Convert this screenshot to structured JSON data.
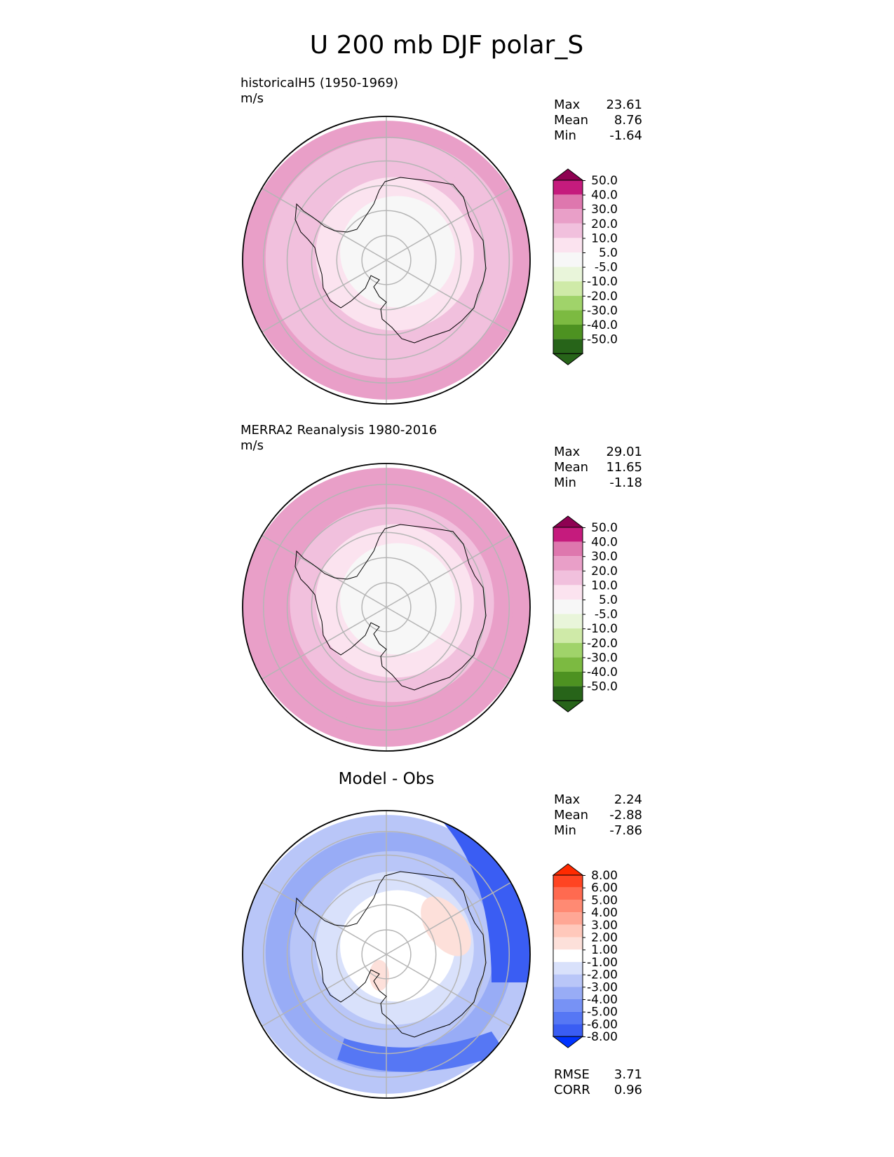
{
  "figure": {
    "title": "U 200 mb DJF polar_S"
  },
  "panels": [
    {
      "id": "model",
      "title_left": "historicalH5 (1950-1969)",
      "units": "m/s",
      "title_center": "",
      "stats": [
        {
          "label": "Max",
          "value": "23.61"
        },
        {
          "label": "Mean",
          "value": "8.76"
        },
        {
          "label": "Min",
          "value": "-1.64"
        }
      ],
      "colorbar": {
        "top_arrow_color": "#8e0152",
        "bottom_arrow_color": "#276419",
        "colors": [
          "#c51b7d",
          "#de77ae",
          "#e99fc8",
          "#f1c0dd",
          "#fbe3ef",
          "#f7f7f7",
          "#e9f5da",
          "#cfeaa8",
          "#a0d36a",
          "#7cba41",
          "#4d9221",
          "#276419"
        ],
        "labels": [
          "50.0",
          "40.0",
          "30.0",
          "20.0",
          "10.0",
          "5.0",
          "-5.0",
          "-10.0",
          "-20.0",
          "-30.0",
          "-40.0",
          "-50.0"
        ]
      },
      "footer_stats": [],
      "rings": [
        {
          "value": 23,
          "color": "#e99fc8"
        },
        {
          "value": 15,
          "color": "#f1c0dd"
        },
        {
          "value": 12,
          "color": "#f1c0dd"
        },
        {
          "value": 8,
          "color": "#fbe3ef"
        },
        {
          "value": 4,
          "color": "#f7f7f7"
        }
      ],
      "patches": []
    },
    {
      "id": "obs",
      "title_left": "MERRA2 Reanalysis 1980-2016",
      "units": "m/s",
      "title_center": "",
      "stats": [
        {
          "label": "Max",
          "value": "29.01"
        },
        {
          "label": "Mean",
          "value": "11.65"
        },
        {
          "label": "Min",
          "value": "-1.18"
        }
      ],
      "colorbar": {
        "top_arrow_color": "#8e0152",
        "bottom_arrow_color": "#276419",
        "colors": [
          "#c51b7d",
          "#de77ae",
          "#e99fc8",
          "#f1c0dd",
          "#fbe3ef",
          "#f7f7f7",
          "#e9f5da",
          "#cfeaa8",
          "#a0d36a",
          "#7cba41",
          "#4d9221",
          "#276419"
        ],
        "labels": [
          "50.0",
          "40.0",
          "30.0",
          "20.0",
          "10.0",
          "5.0",
          "-5.0",
          "-10.0",
          "-20.0",
          "-30.0",
          "-40.0",
          "-50.0"
        ]
      },
      "footer_stats": [],
      "rings": [
        {
          "value": 29,
          "color": "#e99fc8"
        },
        {
          "value": 22,
          "color": "#e99fc8"
        },
        {
          "value": 16,
          "color": "#f1c0dd"
        },
        {
          "value": 9,
          "color": "#fbe3ef"
        },
        {
          "value": 4,
          "color": "#f7f7f7"
        }
      ],
      "patches": []
    },
    {
      "id": "diff",
      "title_left": "",
      "units": "",
      "title_center": "Model - Obs",
      "stats": [
        {
          "label": "Max",
          "value": "2.24"
        },
        {
          "label": "Mean",
          "value": "-2.88"
        },
        {
          "label": "Min",
          "value": "-7.86"
        }
      ],
      "colorbar": {
        "top_arrow_color": "#ff2a00",
        "bottom_arrow_color": "#0033ff",
        "colors": [
          "#ff4422",
          "#ff6a50",
          "#ff8a73",
          "#ffa795",
          "#ffc8bb",
          "#fde0da",
          "#ffffff",
          "#d9e1fb",
          "#b9c6f8",
          "#98acf6",
          "#7792f5",
          "#5677f4",
          "#3a5df3"
        ],
        "labels": [
          "8.00",
          "6.00",
          "5.00",
          "4.00",
          "3.00",
          "2.00",
          "1.00",
          "-1.00",
          "-2.00",
          "-3.00",
          "-4.00",
          "-5.00",
          "-6.00",
          "-8.00"
        ]
      },
      "footer_stats": [
        {
          "label": "RMSE",
          "value": "3.71"
        },
        {
          "label": "CORR",
          "value": "0.96"
        }
      ],
      "rings": [
        {
          "value": -2.5,
          "color": "#b9c6f8"
        },
        {
          "value": -3.5,
          "color": "#98acf6"
        },
        {
          "value": -3.0,
          "color": "#b9c6f8"
        },
        {
          "value": -1.5,
          "color": "#d9e1fb"
        },
        {
          "value": 0.0,
          "color": "#ffffff"
        }
      ],
      "patches": [
        {
          "value": -6.5,
          "color": "#3a5df3"
        },
        {
          "value": -5.5,
          "color": "#5677f4"
        },
        {
          "value": 1.5,
          "color": "#fde0da"
        },
        {
          "value": 1.2,
          "color": "#fde0da"
        }
      ]
    }
  ],
  "chart_data": [
    {
      "type": "heatmap",
      "title": "U 200 mb DJF polar_S",
      "subtitle": "historicalH5 (1950-1969)",
      "units": "m/s",
      "projection": "south polar stereographic",
      "levels": [
        -50,
        -40,
        -30,
        -20,
        -10,
        -5,
        5,
        10,
        20,
        30,
        40,
        50
      ],
      "stats": {
        "Max": 23.61,
        "Mean": 8.76,
        "Min": -1.64
      }
    },
    {
      "type": "heatmap",
      "subtitle": "MERRA2 Reanalysis 1980-2016",
      "units": "m/s",
      "projection": "south polar stereographic",
      "levels": [
        -50,
        -40,
        -30,
        -20,
        -10,
        -5,
        5,
        10,
        20,
        30,
        40,
        50
      ],
      "stats": {
        "Max": 29.01,
        "Mean": 11.65,
        "Min": -1.18
      }
    },
    {
      "type": "heatmap",
      "subtitle": "Model - Obs",
      "projection": "south polar stereographic",
      "levels": [
        -8,
        -6,
        -5,
        -4,
        -3,
        -2,
        -1,
        1,
        2,
        3,
        4,
        5,
        6,
        8
      ],
      "stats": {
        "Max": 2.24,
        "Mean": -2.88,
        "Min": -7.86,
        "RMSE": 3.71,
        "CORR": 0.96
      }
    }
  ]
}
